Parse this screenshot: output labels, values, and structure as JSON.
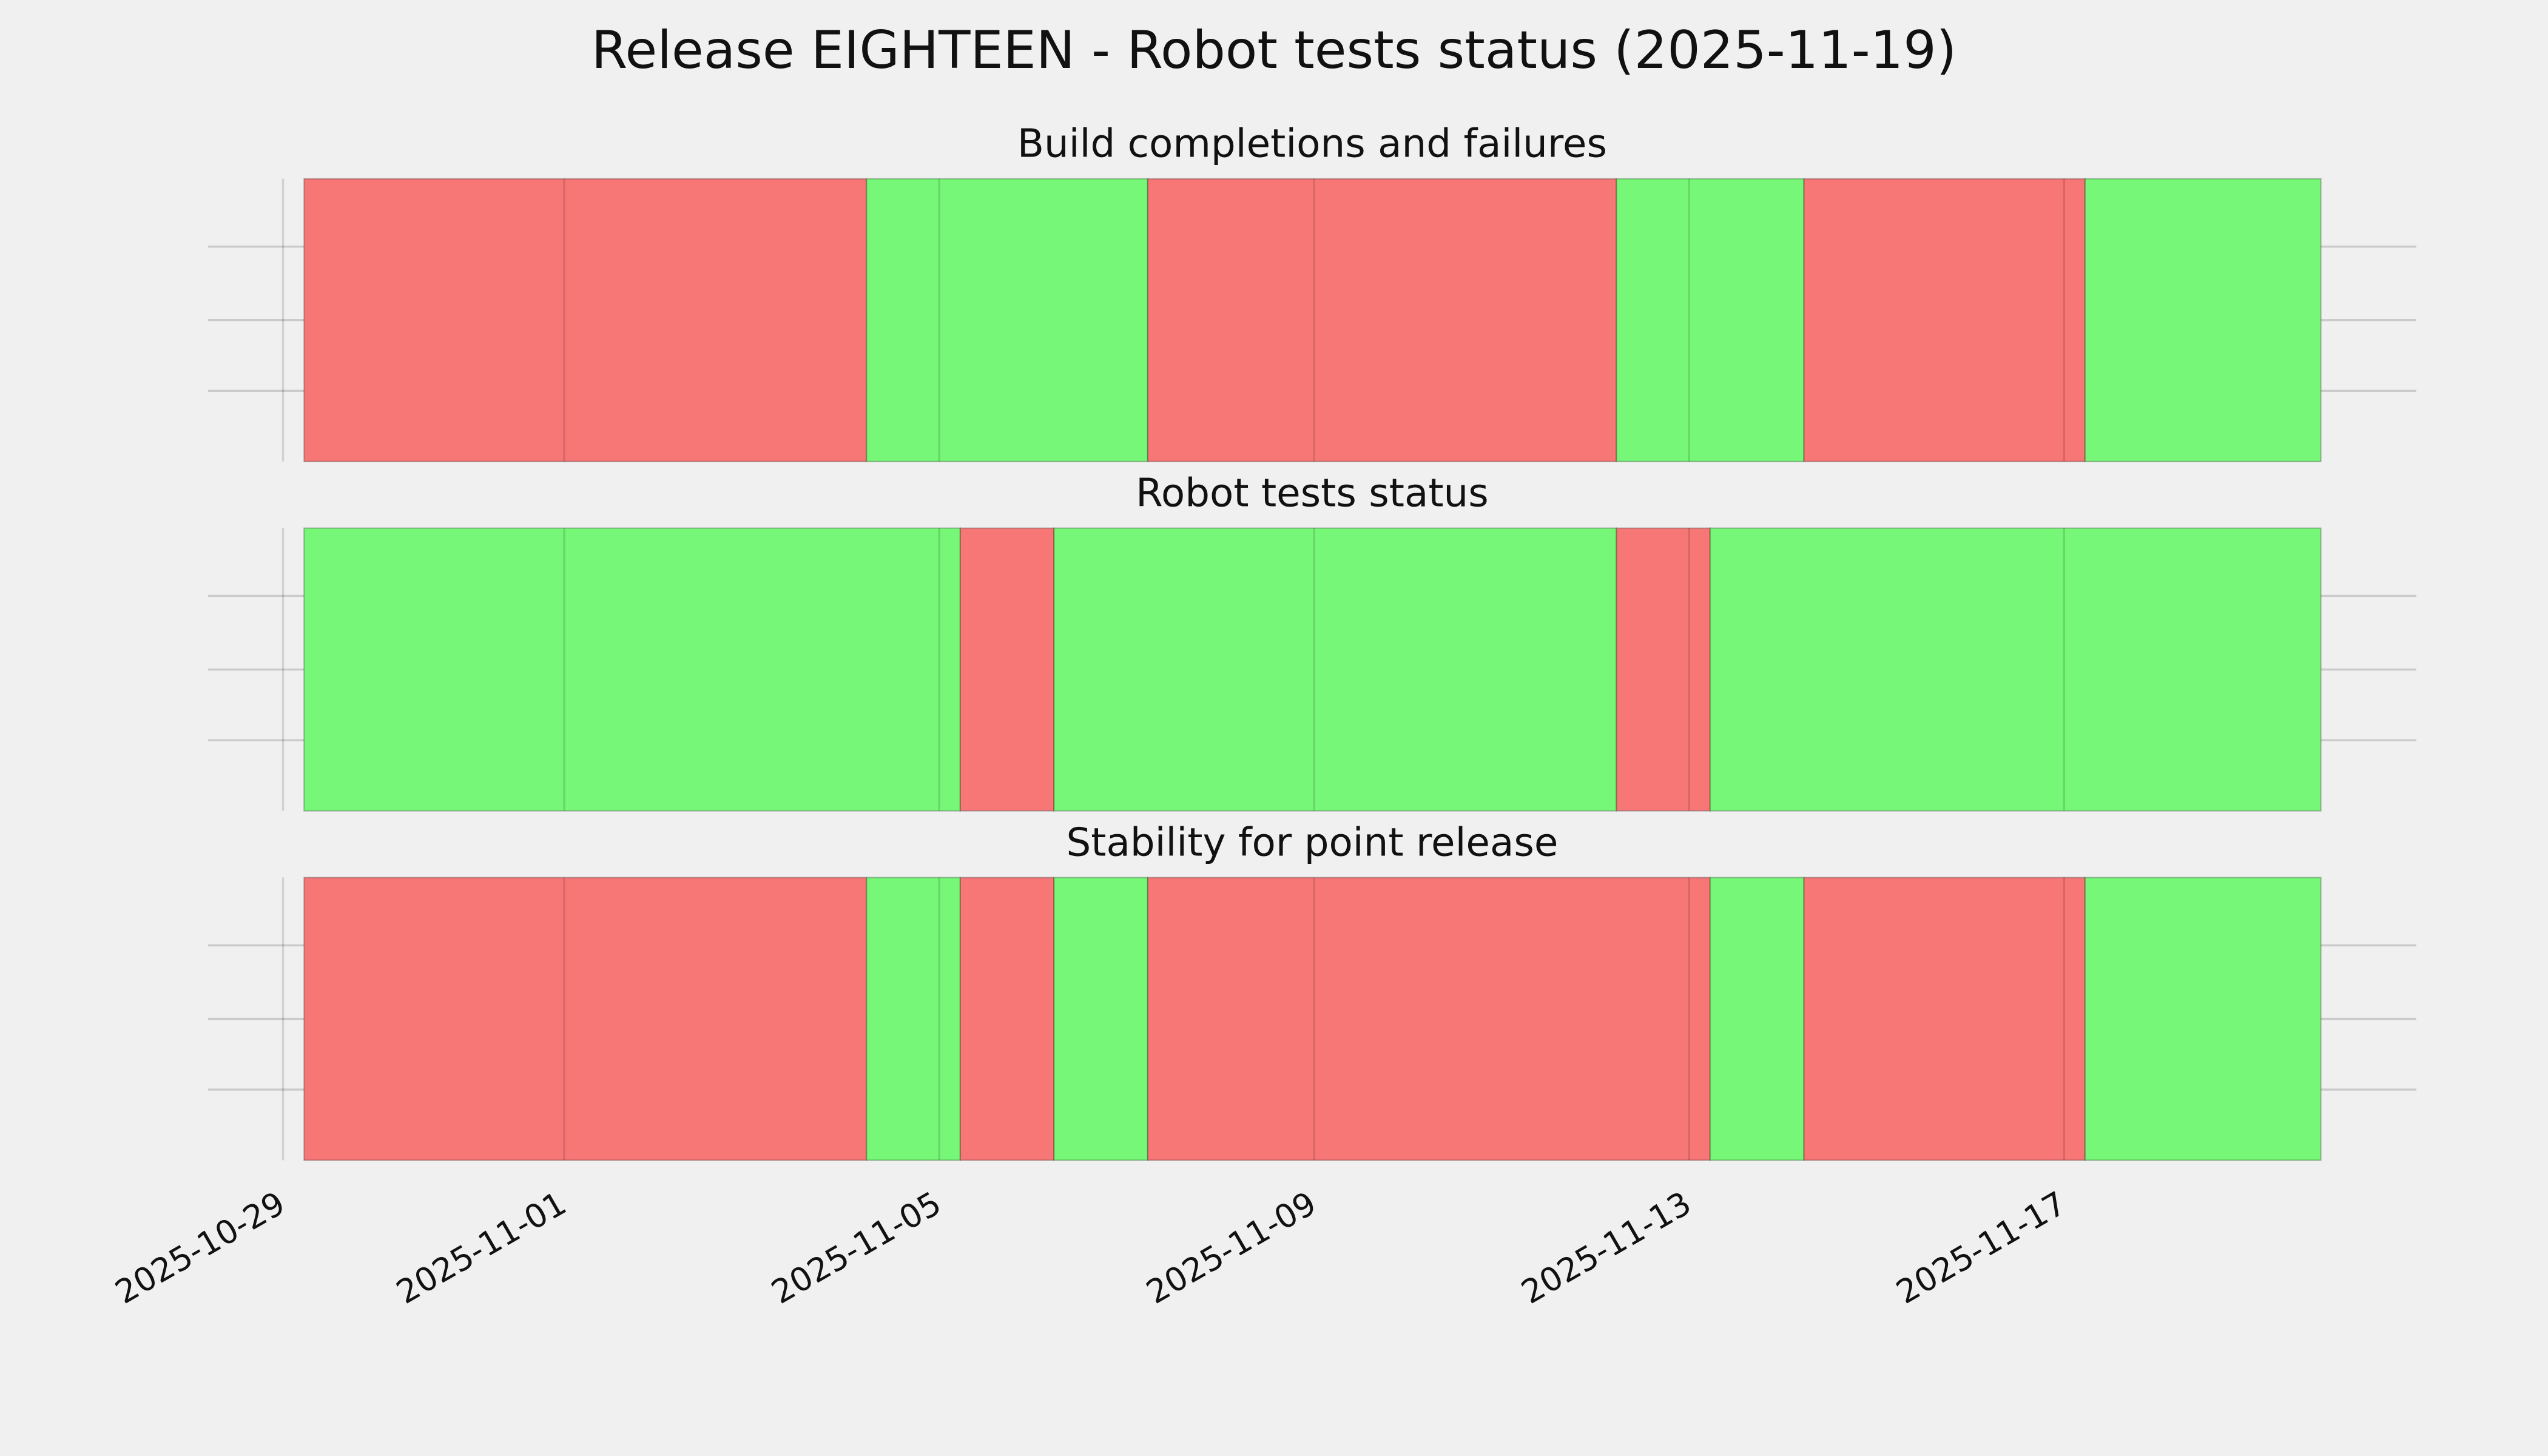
{
  "chart_data": {
    "type": "timeline",
    "title": "Release EIGHTEEN - Robot tests status (2025-11-19)",
    "xlim": [
      "2025-10-28T04:48",
      "2025-11-20T18:12"
    ],
    "xticks": [
      "2025-10-29",
      "2025-11-01",
      "2025-11-05",
      "2025-11-09",
      "2025-11-13",
      "2025-11-17"
    ],
    "grid": true,
    "panels": [
      {
        "title": "Build completions and failures",
        "segments": [
          {
            "start": "2025-10-29T05:24",
            "end": "2025-11-04T05:24",
            "color": "#f77777"
          },
          {
            "start": "2025-11-04T05:24",
            "end": "2025-11-07T05:24",
            "color": "#77f777"
          },
          {
            "start": "2025-11-07T05:24",
            "end": "2025-11-12T05:24",
            "color": "#f77777"
          },
          {
            "start": "2025-11-12T05:24",
            "end": "2025-11-14T05:24",
            "color": "#77f777"
          },
          {
            "start": "2025-11-14T05:24",
            "end": "2025-11-17T05:24",
            "color": "#f77777"
          },
          {
            "start": "2025-11-17T05:24",
            "end": "2025-11-19T17:45",
            "color": "#77f777"
          }
        ]
      },
      {
        "title": "Robot tests status",
        "segments": [
          {
            "start": "2025-10-29T05:24",
            "end": "2025-11-05T05:24",
            "color": "#77f777"
          },
          {
            "start": "2025-11-05T05:24",
            "end": "2025-11-06T05:24",
            "color": "#f77777"
          },
          {
            "start": "2025-11-06T05:24",
            "end": "2025-11-12T05:24",
            "color": "#77f777"
          },
          {
            "start": "2025-11-12T05:24",
            "end": "2025-11-13T05:24",
            "color": "#f77777"
          },
          {
            "start": "2025-11-13T05:24",
            "end": "2025-11-19T17:45",
            "color": "#77f777"
          }
        ]
      },
      {
        "title": "Stability for point release",
        "segments": [
          {
            "start": "2025-10-29T05:24",
            "end": "2025-11-04T05:24",
            "color": "#f77777"
          },
          {
            "start": "2025-11-04T05:24",
            "end": "2025-11-05T05:24",
            "color": "#77f777"
          },
          {
            "start": "2025-11-05T05:24",
            "end": "2025-11-06T05:24",
            "color": "#f77777"
          },
          {
            "start": "2025-11-06T05:24",
            "end": "2025-11-07T05:24",
            "color": "#77f777"
          },
          {
            "start": "2025-11-07T05:24",
            "end": "2025-11-13T05:24",
            "color": "#f77777"
          },
          {
            "start": "2025-11-13T05:24",
            "end": "2025-11-14T05:24",
            "color": "#77f777"
          },
          {
            "start": "2025-11-14T05:24",
            "end": "2025-11-17T05:24",
            "color": "#f77777"
          },
          {
            "start": "2025-11-17T05:24",
            "end": "2025-11-19T17:45",
            "color": "#77f777"
          }
        ]
      }
    ]
  }
}
